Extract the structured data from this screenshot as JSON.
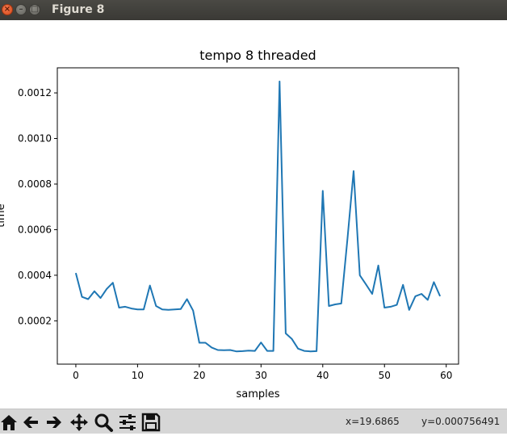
{
  "window": {
    "title": "Figure 8"
  },
  "toolbar": {
    "icons": [
      "home-icon",
      "back-icon",
      "forward-icon",
      "pan-icon",
      "zoom-icon",
      "configure-subplots-icon",
      "save-icon"
    ],
    "x_readout": "x=19.6865",
    "y_readout": "y=0.000756491"
  },
  "colors": {
    "line": "#1f77b4",
    "titlebar": "#3c3b37",
    "toolbar": "#d6d6d6"
  },
  "chart_data": {
    "type": "line",
    "title": "tempo 8 threaded",
    "xlabel": "samples",
    "ylabel": "time",
    "xlim": [
      -3,
      62
    ],
    "ylim": [
      1e-05,
      0.00131
    ],
    "xticks": [
      0,
      10,
      20,
      30,
      40,
      50,
      60
    ],
    "yticks": [
      0.0002,
      0.0004,
      0.0006,
      0.0008,
      0.001,
      0.0012
    ],
    "ytick_labels": [
      "0.0002",
      "0.0004",
      "0.0006",
      "0.0008",
      "0.0010",
      "0.0012"
    ],
    "grid": false,
    "series": [
      {
        "x": [
          0,
          1,
          2,
          3,
          4,
          5,
          6,
          7,
          8,
          9,
          10,
          11,
          12,
          13,
          14,
          15,
          16,
          17,
          18,
          19,
          20,
          21,
          22,
          23,
          24,
          25,
          26,
          27,
          28,
          29,
          30,
          31,
          32,
          33,
          34,
          35,
          36,
          37,
          38,
          39,
          40,
          41,
          42,
          43,
          44,
          45,
          46,
          47,
          48,
          49,
          50,
          51,
          52,
          53,
          54,
          55,
          56,
          57,
          58,
          59
        ],
        "values": [
          0.00041,
          0.000305,
          0.000295,
          0.00033,
          0.0003,
          0.00034,
          0.000367,
          0.000258,
          0.000262,
          0.000254,
          0.00025,
          0.00025,
          0.000355,
          0.000265,
          0.00025,
          0.000248,
          0.00025,
          0.000252,
          0.000295,
          0.000245,
          0.000104,
          0.000104,
          8.3e-05,
          7.2e-05,
          7.1e-05,
          7.2e-05,
          6.6e-05,
          6.7e-05,
          6.9e-05,
          6.8e-05,
          0.000105,
          6.8e-05,
          6.8e-05,
          0.00125,
          0.000145,
          0.00012,
          7.8e-05,
          6.8e-05,
          6.6e-05,
          6.7e-05,
          0.00077,
          0.000265,
          0.000272,
          0.000276,
          0.00056,
          0.000857,
          0.0004,
          0.00036,
          0.000318,
          0.000443,
          0.000258,
          0.000262,
          0.00027,
          0.000358,
          0.000248,
          0.000308,
          0.000318,
          0.000292,
          0.00037,
          0.000308
        ]
      }
    ]
  }
}
